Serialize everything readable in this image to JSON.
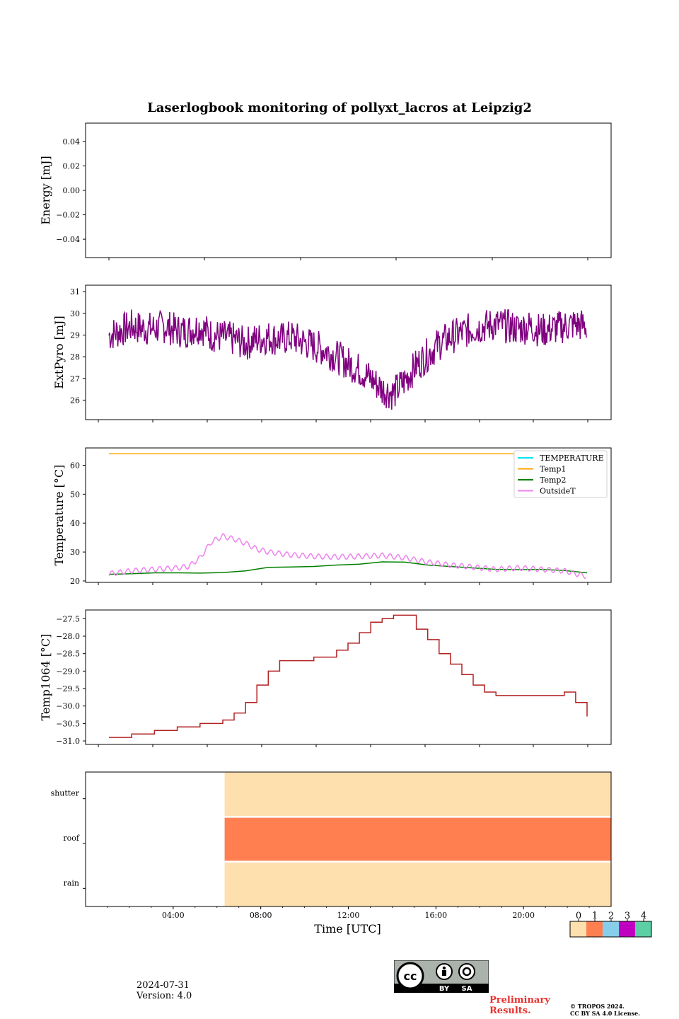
{
  "title": "Laserlogbook monitoring of pollyxt_lacros at Leipzig2",
  "footer": {
    "date": "2024-07-31",
    "version": "Version: 4.0",
    "preliminary_line1": "Preliminary",
    "preliminary_line2": "Results.",
    "copyright_line1": "© TROPOS 2024.",
    "copyright_line2": "CC BY SA 4.0 License.",
    "license_badge": {
      "top": "cc",
      "left": "BY",
      "right": "SA"
    }
  },
  "colors": {
    "extpyro": "#800080",
    "temperature": "#00e5ee",
    "temp1": "#ffa500",
    "temp2": "#008000",
    "outsideT": "#ee82ee",
    "temp1064": "#b22222",
    "status": [
      "#fedfae",
      "#ff7f50",
      "#87ceeb",
      "#c000c0",
      "#5ccfa4"
    ]
  },
  "chart_data": [
    {
      "id": "energy",
      "type": "line",
      "ylabel": "Energy [mJ]",
      "ylim": [
        -0.055,
        0.055
      ],
      "yticks": [
        -0.04,
        -0.02,
        0.0,
        0.02,
        0.04
      ],
      "ytick_labels": [
        "−0.04",
        "−0.02",
        "0.00",
        "0.02",
        "0.04"
      ],
      "series": []
    },
    {
      "id": "extpyro",
      "type": "line",
      "ylabel": "ExtPyro [mJ]",
      "ylim": [
        25.1,
        31.3
      ],
      "yticks": [
        26,
        27,
        28,
        29,
        30,
        31
      ],
      "ytick_labels": [
        "26",
        "27",
        "28",
        "29",
        "30",
        "31"
      ],
      "series": [
        {
          "color_key": "extpyro",
          "x_hours": [
            1.0,
            1.5,
            2.0,
            2.5,
            3.0,
            3.5,
            4.0,
            4.5,
            5.0,
            5.5,
            6.0,
            6.5,
            7.0,
            7.5,
            8.0,
            8.5,
            9.0,
            9.5,
            10.0,
            10.5,
            11.0,
            11.5,
            12.0,
            12.5,
            13.0,
            13.5,
            14.0,
            14.5,
            15.0,
            15.5,
            16.0,
            16.5,
            17.0,
            17.5,
            18.0,
            18.5,
            19.0,
            19.5,
            20.0,
            20.5,
            21.0,
            21.5,
            22.0
          ],
          "values": [
            29.0,
            29.2,
            29.4,
            29.3,
            29.3,
            29.4,
            29.2,
            29.2,
            29.4,
            29.0,
            28.9,
            28.8,
            28.6,
            28.8,
            28.9,
            28.8,
            28.9,
            28.7,
            28.5,
            28.3,
            28.0,
            27.7,
            27.4,
            27.0,
            26.5,
            26.3,
            26.9,
            27.6,
            28.1,
            28.6,
            28.9,
            29.1,
            29.3,
            29.4,
            29.5,
            29.4,
            29.3,
            29.4,
            29.2,
            29.3,
            29.4,
            29.5,
            29.4
          ],
          "note_points_only": true
        }
      ]
    },
    {
      "id": "temperature",
      "type": "line",
      "ylabel": "Temperature [°C]",
      "ylim": [
        19.5,
        66
      ],
      "yticks": [
        20,
        30,
        40,
        50,
        60
      ],
      "ytick_labels": [
        "20",
        "30",
        "40",
        "50",
        "60"
      ],
      "legend": "top-right",
      "series": [
        {
          "name": "TEMPERATURE",
          "color_key": "temperature",
          "x_hours": [],
          "values": []
        },
        {
          "name": "Temp1",
          "color_key": "temp1",
          "x_hours": [
            1.0,
            22.0
          ],
          "values": [
            64.0,
            64.0
          ]
        },
        {
          "name": "Temp2",
          "color_key": "temp2",
          "x_hours": [
            1.0,
            2.0,
            3.0,
            4.0,
            5.0,
            6.0,
            7.0,
            8.0,
            9.0,
            10.0,
            11.0,
            12.0,
            13.0,
            14.0,
            15.0,
            16.0,
            17.0,
            18.0,
            19.0,
            20.0,
            21.0,
            22.0
          ],
          "values": [
            22.3,
            22.5,
            22.8,
            22.8,
            22.7,
            22.9,
            23.5,
            24.7,
            24.8,
            25.0,
            25.5,
            25.8,
            26.6,
            26.5,
            25.5,
            25.0,
            24.5,
            24.0,
            23.9,
            24.0,
            23.6,
            22.8
          ]
        },
        {
          "name": "OutsideT",
          "color_key": "outsideT",
          "x_hours": [
            1.0,
            2.0,
            3.0,
            4.0,
            4.5,
            5.0,
            5.5,
            6.0,
            6.5,
            7.0,
            7.5,
            8.0,
            9.0,
            10.0,
            11.0,
            12.0,
            13.0,
            14.0,
            15.0,
            16.0,
            17.0,
            18.0,
            19.0,
            20.0,
            21.0,
            21.5,
            22.0
          ],
          "values": [
            22.5,
            23.5,
            24.0,
            24.5,
            25.0,
            28.0,
            33.5,
            35.5,
            34.5,
            33.0,
            31.0,
            30.0,
            29.0,
            28.5,
            28.3,
            28.5,
            28.8,
            28.0,
            26.5,
            25.5,
            24.8,
            24.0,
            24.5,
            24.0,
            23.5,
            22.5,
            21.6
          ]
        }
      ]
    },
    {
      "id": "temp1064",
      "type": "line",
      "ylabel": "Temp1064 [°C]",
      "ylim": [
        -31.1,
        -27.25
      ],
      "yticks": [
        -31.0,
        -30.5,
        -30.0,
        -29.5,
        -29.0,
        -28.5,
        -28.0,
        -27.5
      ],
      "ytick_labels": [
        "−31.0",
        "−30.5",
        "−30.0",
        "−29.5",
        "−29.0",
        "−28.5",
        "−28.0",
        "−27.5"
      ],
      "series": [
        {
          "color_key": "temp1064",
          "x_hours": [
            1.0,
            2.0,
            3.0,
            4.0,
            5.0,
            6.0,
            6.5,
            7.0,
            7.5,
            8.0,
            8.5,
            9.0,
            10.0,
            11.0,
            11.5,
            12.0,
            12.5,
            13.0,
            13.5,
            14.0,
            14.5,
            15.0,
            15.5,
            16.0,
            16.5,
            17.0,
            17.5,
            18.0,
            18.5,
            19.0,
            20.0,
            21.0,
            21.5,
            22.0
          ],
          "values": [
            -30.9,
            -30.8,
            -30.7,
            -30.6,
            -30.5,
            -30.4,
            -30.2,
            -29.9,
            -29.4,
            -29.0,
            -28.7,
            -28.7,
            -28.6,
            -28.4,
            -28.2,
            -27.9,
            -27.6,
            -27.5,
            -27.4,
            -27.4,
            -27.8,
            -28.1,
            -28.5,
            -28.8,
            -29.1,
            -29.4,
            -29.6,
            -29.7,
            -29.7,
            -29.7,
            -29.7,
            -29.6,
            -29.9,
            -30.3
          ]
        }
      ]
    },
    {
      "id": "status",
      "type": "heatmap",
      "rows": [
        "shutter",
        "roof",
        "rain"
      ],
      "x_start_hours": 6.35,
      "x_end_hours": 24.0,
      "row_values": [
        0,
        1,
        0
      ],
      "xlabel": "Time [UTC]",
      "xticks_hours": [
        4,
        8,
        12,
        16,
        20
      ],
      "xtick_labels": [
        "04:00",
        "08:00",
        "12:00",
        "16:00",
        "20:00"
      ],
      "colorbar_labels": [
        "0",
        "1",
        "2",
        "3",
        "4"
      ]
    }
  ]
}
